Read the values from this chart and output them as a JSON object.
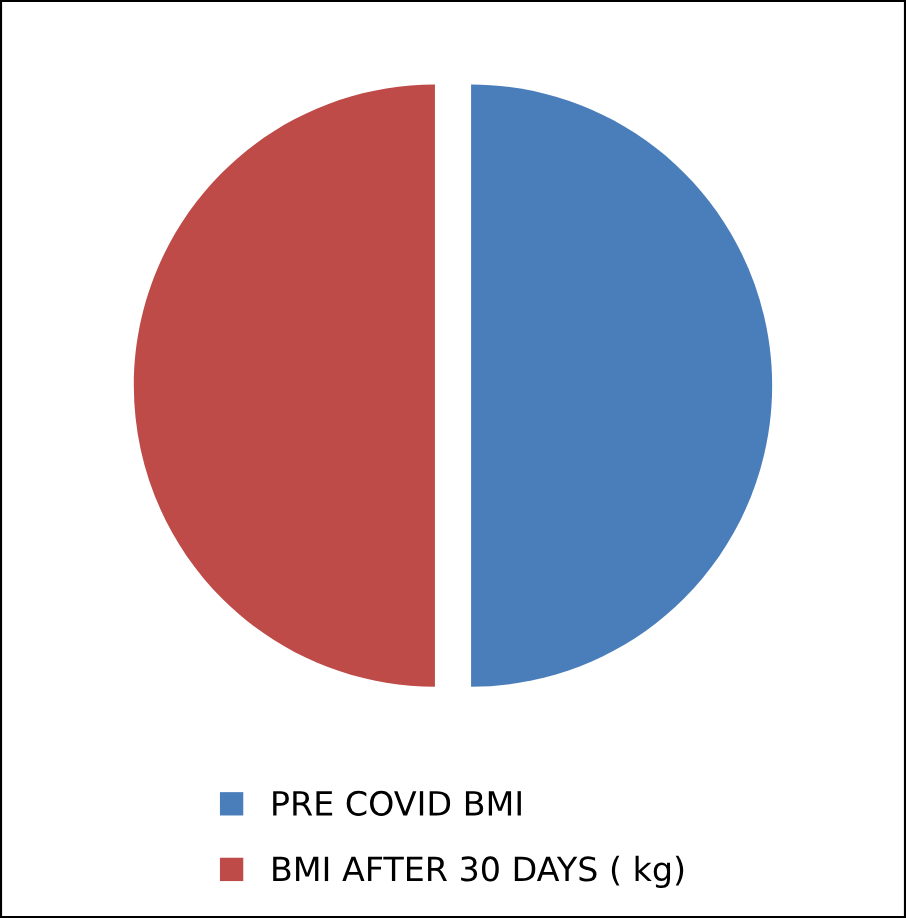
{
  "chart_data": {
    "type": "pie",
    "categories": [
      "PRE COVID BMI",
      "BMI AFTER 30 DAYS ( kg)"
    ],
    "values": [
      50,
      50
    ],
    "colors": [
      "#4a7ebb",
      "#be4b48"
    ],
    "legend": "bottom"
  }
}
